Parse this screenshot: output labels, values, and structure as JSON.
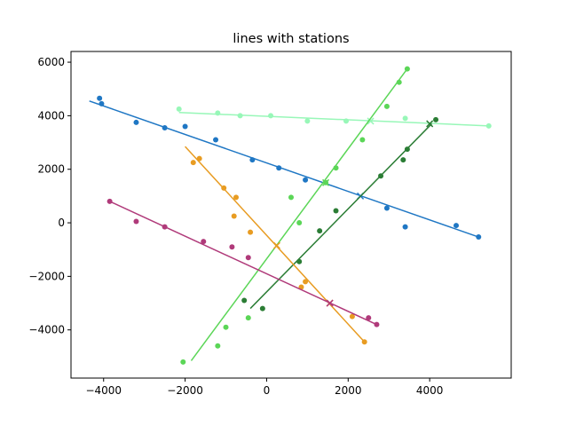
{
  "chart_data": {
    "type": "scatter",
    "title": "lines with stations",
    "xlabel": "",
    "ylabel": "",
    "xlim": [
      -4800,
      6000
    ],
    "ylim": [
      -5800,
      6400
    ],
    "xticks": [
      -4000,
      -2000,
      0,
      2000,
      4000
    ],
    "yticks": [
      -4000,
      -2000,
      0,
      2000,
      4000,
      6000
    ],
    "xtick_labels": [
      "−4000",
      "−2000",
      "0",
      "2000",
      "4000"
    ],
    "ytick_labels": [
      "−4000",
      "−2000",
      "0",
      "2000",
      "4000",
      "6000"
    ],
    "grid": false,
    "legend": "none",
    "series": [
      {
        "color": "#1f77c4",
        "line": [
          [
            -4350,
            4550
          ],
          [
            5200,
            -530
          ]
        ],
        "points": [
          [
            -4100,
            4650
          ],
          [
            -4050,
            4450
          ],
          [
            -3200,
            3750
          ],
          [
            -2500,
            3550
          ],
          [
            -2000,
            3600
          ],
          [
            -1250,
            3100
          ],
          [
            -350,
            2350
          ],
          [
            300,
            2050
          ],
          [
            950,
            1600
          ],
          [
            2950,
            550
          ],
          [
            3400,
            -150
          ],
          [
            4650,
            -100
          ],
          [
            5200,
            -530
          ]
        ],
        "markers": [
          [
            2300,
            1000
          ]
        ]
      },
      {
        "color": "#98f7b8",
        "line": [
          [
            -2150,
            4120
          ],
          [
            5450,
            3620
          ]
        ],
        "points": [
          [
            -2150,
            4250
          ],
          [
            -1200,
            4100
          ],
          [
            -650,
            4000
          ],
          [
            100,
            4000
          ],
          [
            1000,
            3800
          ],
          [
            1950,
            3800
          ],
          [
            3400,
            3900
          ],
          [
            5450,
            3620
          ]
        ],
        "markers": [
          [
            2550,
            3800
          ]
        ]
      },
      {
        "color": "#5bd657",
        "line": [
          [
            -1850,
            -5150
          ],
          [
            3450,
            5750
          ]
        ],
        "points": [
          [
            -2050,
            -5200
          ],
          [
            -1200,
            -4600
          ],
          [
            -1000,
            -3900
          ],
          [
            -450,
            -3550
          ],
          [
            800,
            0
          ],
          [
            600,
            950
          ],
          [
            1450,
            1500
          ],
          [
            1700,
            2050
          ],
          [
            2350,
            3100
          ],
          [
            2950,
            4350
          ],
          [
            3250,
            5250
          ],
          [
            3450,
            5750
          ]
        ],
        "markers": [
          [
            1450,
            1500
          ]
        ]
      },
      {
        "color": "#2b7d35",
        "line": [
          [
            -400,
            -3200
          ],
          [
            4050,
            3700
          ]
        ],
        "points": [
          [
            -550,
            -2900
          ],
          [
            -100,
            -3200
          ],
          [
            800,
            -1450
          ],
          [
            1300,
            -300
          ],
          [
            1700,
            450
          ],
          [
            2800,
            1750
          ],
          [
            3350,
            2350
          ],
          [
            3450,
            2750
          ],
          [
            4150,
            3850
          ]
        ],
        "markers": [
          [
            4000,
            3700
          ]
        ]
      },
      {
        "color": "#e89c22",
        "line": [
          [
            -2000,
            2850
          ],
          [
            2400,
            -4450
          ]
        ],
        "points": [
          [
            -1800,
            2250
          ],
          [
            -1650,
            2400
          ],
          [
            -1050,
            1300
          ],
          [
            -750,
            950
          ],
          [
            -800,
            250
          ],
          [
            -400,
            -350
          ],
          [
            850,
            -2400
          ],
          [
            950,
            -2200
          ],
          [
            2100,
            -3500
          ],
          [
            2400,
            -4450
          ]
        ],
        "markers": [
          [
            250,
            -850
          ],
          [
            1550,
            -3000
          ]
        ]
      },
      {
        "color": "#b03a7a",
        "line": [
          [
            -3850,
            800
          ],
          [
            2700,
            -3800
          ]
        ],
        "points": [
          [
            -3850,
            800
          ],
          [
            -3200,
            50
          ],
          [
            -2500,
            -150
          ],
          [
            -1550,
            -700
          ],
          [
            -850,
            -900
          ],
          [
            -450,
            -1300
          ],
          [
            2500,
            -3550
          ],
          [
            2700,
            -3800
          ]
        ],
        "markers": [
          [
            1550,
            -3000
          ]
        ]
      }
    ]
  }
}
